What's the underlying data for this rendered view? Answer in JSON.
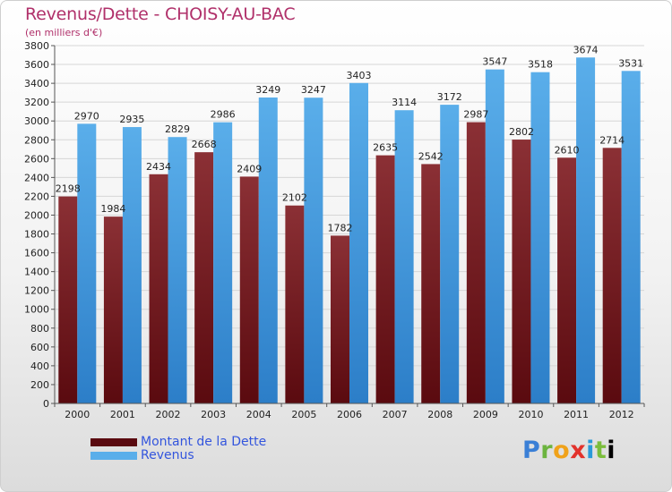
{
  "colors": {
    "title": "#b0306a",
    "legend_text": "#3355dd",
    "debt_top": "#8b3035",
    "debt_bottom": "#5a0a0f",
    "revenue_top": "#5aaeea",
    "revenue_bottom": "#2c7ec8"
  },
  "chart_data": {
    "type": "bar",
    "title": "Revenus/Dette - CHOISY-AU-BAC",
    "subtitle": "(en milliers d'€)",
    "categories": [
      "2000",
      "2001",
      "2002",
      "2003",
      "2004",
      "2005",
      "2006",
      "2007",
      "2008",
      "2009",
      "2010",
      "2011",
      "2012"
    ],
    "series": [
      {
        "name": "Montant de la Dette",
        "values": [
          2198,
          1984,
          2434,
          2668,
          2409,
          2102,
          1782,
          2635,
          2542,
          2987,
          2802,
          2610,
          2714
        ]
      },
      {
        "name": "Revenus",
        "values": [
          2970,
          2935,
          2829,
          2986,
          3249,
          3247,
          3403,
          3114,
          3172,
          3547,
          3518,
          3674,
          3531
        ]
      }
    ],
    "ylim": [
      0,
      3800
    ],
    "yticks": [
      "0",
      "200",
      "400",
      "600",
      "800",
      "1000",
      "1200",
      "1400",
      "1600",
      "1800",
      "2000",
      "2200",
      "2400",
      "2600",
      "2800",
      "3000",
      "3200",
      "3400",
      "3600",
      "3800"
    ],
    "grid": true,
    "legend_position": "bottom-left"
  },
  "logo": {
    "letters": [
      "P",
      "r",
      "o",
      "x",
      "i",
      "t",
      "i"
    ]
  }
}
